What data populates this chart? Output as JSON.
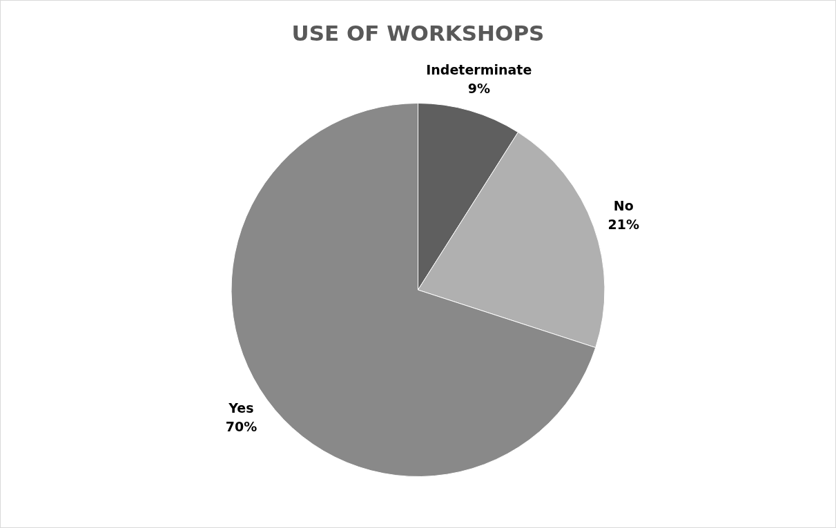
{
  "chart_data": {
    "type": "pie",
    "title": "USE OF WORKSHOPS",
    "categories": [
      "Indeterminate",
      "No",
      "Yes"
    ],
    "values": [
      9,
      21,
      70
    ],
    "value_labels": [
      "9%",
      "21%",
      "70%"
    ],
    "colors": [
      "#5f5f5f",
      "#b0b0b0",
      "#898989"
    ],
    "legend": false
  }
}
